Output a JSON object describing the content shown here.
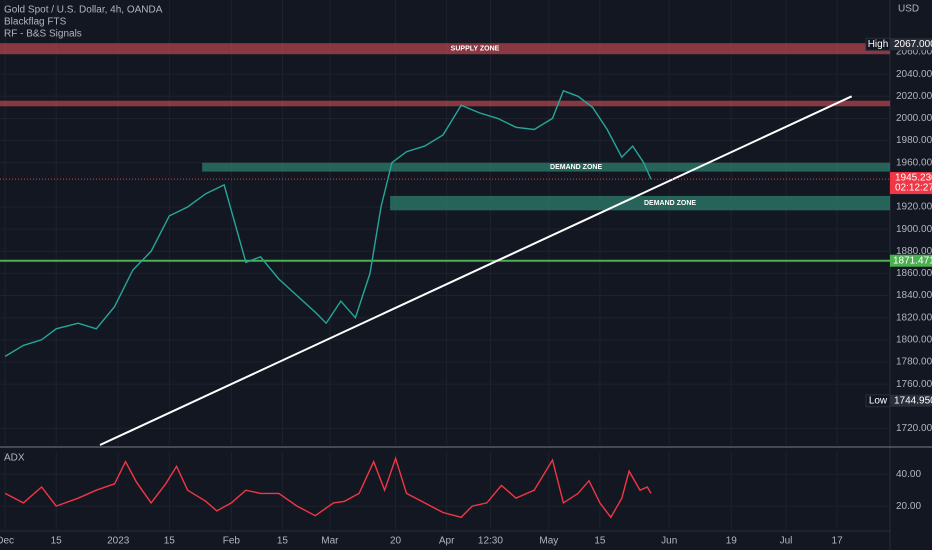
{
  "chart_data": [
    {
      "type": "line",
      "header": [
        "Gold Spot / U.S. Dollar, 4h, OANDA",
        "Blackflag FTS",
        "RF - B&S Signals"
      ],
      "y_unit": "USD",
      "color": "#26a69a",
      "x": [
        0,
        5,
        10,
        14,
        20,
        25,
        30,
        35,
        40,
        45,
        50,
        55,
        60,
        63,
        66,
        70,
        75,
        80,
        85,
        88,
        92,
        96,
        100,
        103,
        106,
        110,
        115,
        120,
        125,
        130,
        135,
        140,
        145,
        150,
        153,
        157,
        161,
        165,
        169,
        172,
        175,
        177
      ],
      "values": [
        1785,
        1795,
        1800,
        1810,
        1815,
        1810,
        1830,
        1863,
        1880,
        1912,
        1920,
        1932,
        1940,
        1905,
        1870,
        1875,
        1855,
        1840,
        1825,
        1815,
        1835,
        1820,
        1860,
        1920,
        1960,
        1970,
        1975,
        1985,
        2012,
        2005,
        2000,
        1992,
        1990,
        2000,
        2025,
        2020,
        2010,
        1990,
        1965,
        1975,
        1960,
        1945.23
      ],
      "xlim": [
        -1.4,
        242.5
      ],
      "ylim": [
        1705,
        2107
      ],
      "yticks": [
        {
          "value": 1720,
          "label": "1720.000"
        },
        {
          "value": 1760,
          "label": "1760.000"
        },
        {
          "value": 1780,
          "label": "1780.000"
        },
        {
          "value": 1800,
          "label": "1800.000"
        },
        {
          "value": 1820,
          "label": "1820.000"
        },
        {
          "value": 1840,
          "label": "1840.000"
        },
        {
          "value": 1860,
          "label": "1860.000"
        },
        {
          "value": 1880,
          "label": "1880.000"
        },
        {
          "value": 1900,
          "label": "1900.000"
        },
        {
          "value": 1920,
          "label": "1920.000"
        },
        {
          "value": 1960,
          "label": "1960.000"
        },
        {
          "value": 1980,
          "label": "1980.000"
        },
        {
          "value": 2000,
          "label": "2000.000"
        },
        {
          "value": 2020,
          "label": "2020.000"
        },
        {
          "value": 2040,
          "label": "2040.000"
        },
        {
          "value": 2060,
          "label": "2060.000"
        }
      ],
      "grid": true,
      "zones": [
        {
          "label": "SUPPLY ZONE",
          "y": [
            2058,
            2068
          ],
          "x_start": -1.4,
          "color": "#b2444d"
        },
        {
          "y": [
            2011,
            2016
          ],
          "x_start": -1.4,
          "color": "#b2444d"
        },
        {
          "label": "DEMAND ZONE",
          "y": [
            1952,
            1960
          ],
          "x_start": 54,
          "color": "#2e7d6b"
        },
        {
          "label": "DEMAND ZONE",
          "y": [
            1917,
            1930
          ],
          "x_start": 105.5,
          "color": "#2e7d6b"
        }
      ],
      "trendline": {
        "x": [
          26,
          232
        ],
        "y": [
          1705,
          2020
        ],
        "color": "#ffffff"
      },
      "level_line": {
        "value": 1871.471,
        "color": "#4caf50"
      },
      "price_labels": [
        {
          "tag": "High",
          "value": 2067,
          "value_label": "2067.000",
          "color": "#ffffff"
        },
        {
          "tag": "Low",
          "value": 1744.95,
          "value_label": "1744.950",
          "color": "#ffffff"
        }
      ],
      "last_price": {
        "value": 1945.23,
        "value_label": "1945.230",
        "countdown": "02:12:27",
        "color": "#f23645"
      }
    },
    {
      "type": "line",
      "title": "ADX",
      "color": "#f23645",
      "x": [
        0,
        5,
        10,
        14,
        20,
        25,
        30,
        33,
        36,
        40,
        44,
        47,
        50,
        55,
        58,
        62,
        66,
        70,
        75,
        80,
        85,
        90,
        93,
        97,
        101,
        104,
        107,
        110,
        115,
        120,
        125,
        128,
        132,
        136,
        140,
        145,
        150,
        153,
        157,
        160,
        163,
        166,
        169,
        171,
        174,
        176,
        177
      ],
      "values": [
        28,
        22,
        32,
        20,
        25,
        30,
        34,
        48,
        35,
        22,
        34,
        45,
        30,
        23,
        17,
        22,
        30,
        28,
        28,
        20,
        14,
        22,
        23,
        28,
        48,
        30,
        50,
        28,
        22,
        16,
        13,
        20,
        22,
        33,
        25,
        30,
        49,
        22,
        28,
        36,
        22,
        13,
        25,
        42,
        30,
        32,
        28
      ],
      "xlim": [
        -1.4,
        242.5
      ],
      "ylim": [
        5,
        54
      ],
      "yticks": [
        {
          "value": 20,
          "label": "20.00"
        },
        {
          "value": 40,
          "label": "40.00"
        }
      ],
      "xticks": [
        {
          "value": 0,
          "label": "Dec"
        },
        {
          "value": 14,
          "label": "15"
        },
        {
          "value": 31,
          "label": "2023"
        },
        {
          "value": 45,
          "label": "15"
        },
        {
          "value": 62,
          "label": "Feb"
        },
        {
          "value": 76,
          "label": "15"
        },
        {
          "value": 89,
          "label": "Mar"
        },
        {
          "value": 107,
          "label": "20"
        },
        {
          "value": 121,
          "label": "Apr"
        },
        {
          "value": 133,
          "label": "12:30"
        },
        {
          "value": 149,
          "label": "May"
        },
        {
          "value": 163,
          "label": "15"
        },
        {
          "value": 182,
          "label": "Jun"
        },
        {
          "value": 199,
          "label": "19"
        },
        {
          "value": 214,
          "label": "Jul"
        },
        {
          "value": 228,
          "label": "17"
        }
      ],
      "grid": true
    }
  ]
}
